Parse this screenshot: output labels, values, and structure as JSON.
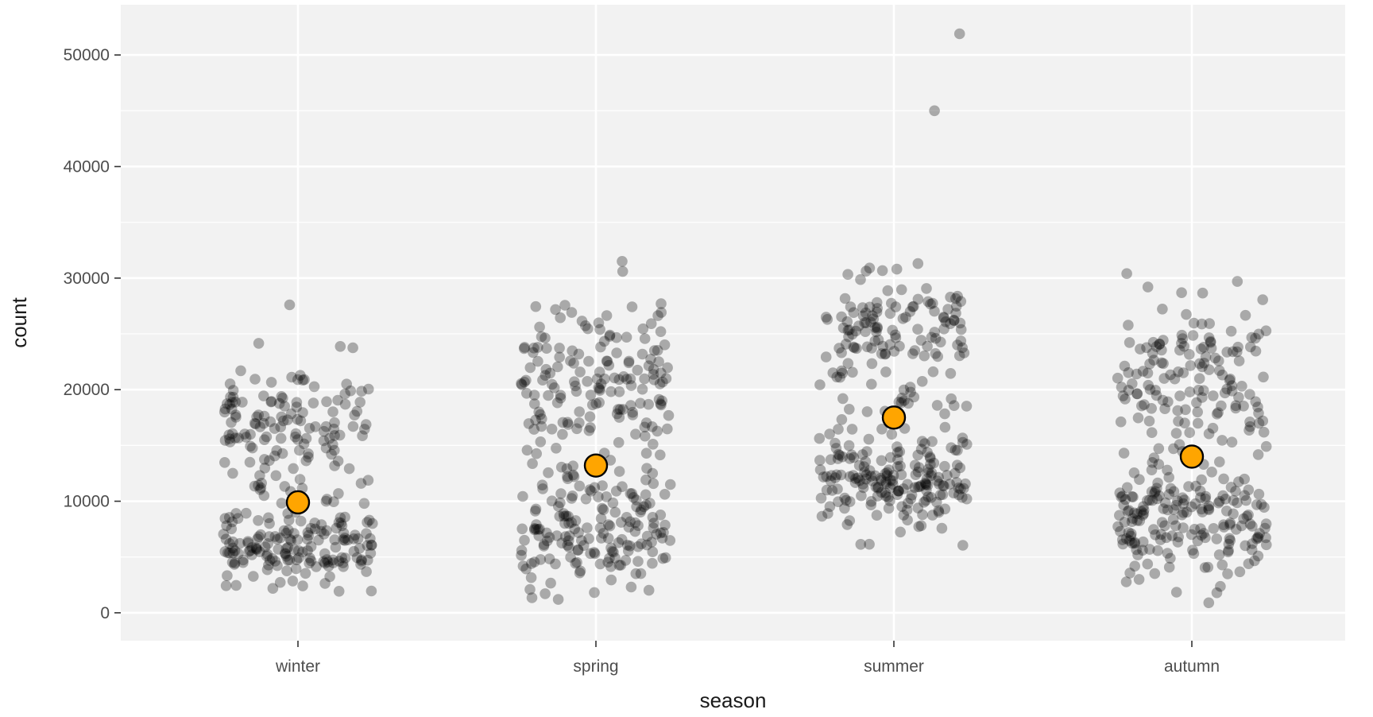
{
  "chart_data": {
    "type": "scatter",
    "xlabel": "season",
    "ylabel": "count",
    "categories": [
      "winter",
      "spring",
      "summer",
      "autumn"
    ],
    "ylim": [
      -2500,
      54500
    ],
    "yticks": [
      0,
      10000,
      20000,
      30000,
      40000,
      50000
    ],
    "ytick_labels": [
      "0",
      "10000",
      "20000",
      "30000",
      "40000",
      "50000"
    ],
    "grid": true,
    "background": "#f2f2f2",
    "gridline_color": "#ffffff",
    "point_color": "#000000",
    "point_alpha": 0.3,
    "mean_color": "#ffa500",
    "mean_stroke": "#000000",
    "series": [
      {
        "category": "winter",
        "n_points": 300,
        "mean": 9900,
        "range": [
          1900,
          27600
        ],
        "bands": [
          {
            "center": 6000,
            "spread": 1700,
            "weight": 0.42
          },
          {
            "center": 17500,
            "spread": 2100,
            "weight": 0.28
          },
          {
            "center": 11000,
            "spread": 5500,
            "weight": 0.3
          }
        ],
        "notable_points": [
          27600,
          21700,
          20900
        ]
      },
      {
        "category": "spring",
        "n_points": 330,
        "mean": 13200,
        "range": [
          1200,
          31500
        ],
        "bands": [
          {
            "center": 7500,
            "spread": 2800,
            "weight": 0.45
          },
          {
            "center": 21000,
            "spread": 3200,
            "weight": 0.35
          },
          {
            "center": 14000,
            "spread": 5000,
            "weight": 0.2
          }
        ],
        "notable_points": [
          31500,
          30600,
          27700,
          1200
        ]
      },
      {
        "category": "summer",
        "n_points": 330,
        "mean": 17500,
        "range": [
          4700,
          51900
        ],
        "bands": [
          {
            "center": 11800,
            "spread": 1900,
            "weight": 0.45
          },
          {
            "center": 25500,
            "spread": 2400,
            "weight": 0.35
          },
          {
            "center": 17500,
            "spread": 5500,
            "weight": 0.2
          }
        ],
        "notable_points": [
          51900,
          45000,
          31300,
          30900
        ]
      },
      {
        "category": "autumn",
        "n_points": 330,
        "mean": 14000,
        "range": [
          900,
          30400
        ],
        "bands": [
          {
            "center": 8200,
            "spread": 2300,
            "weight": 0.48
          },
          {
            "center": 21500,
            "spread": 3300,
            "weight": 0.32
          },
          {
            "center": 14000,
            "spread": 5500,
            "weight": 0.2
          }
        ],
        "notable_points": [
          30400,
          29700,
          29200,
          900
        ]
      }
    ]
  }
}
